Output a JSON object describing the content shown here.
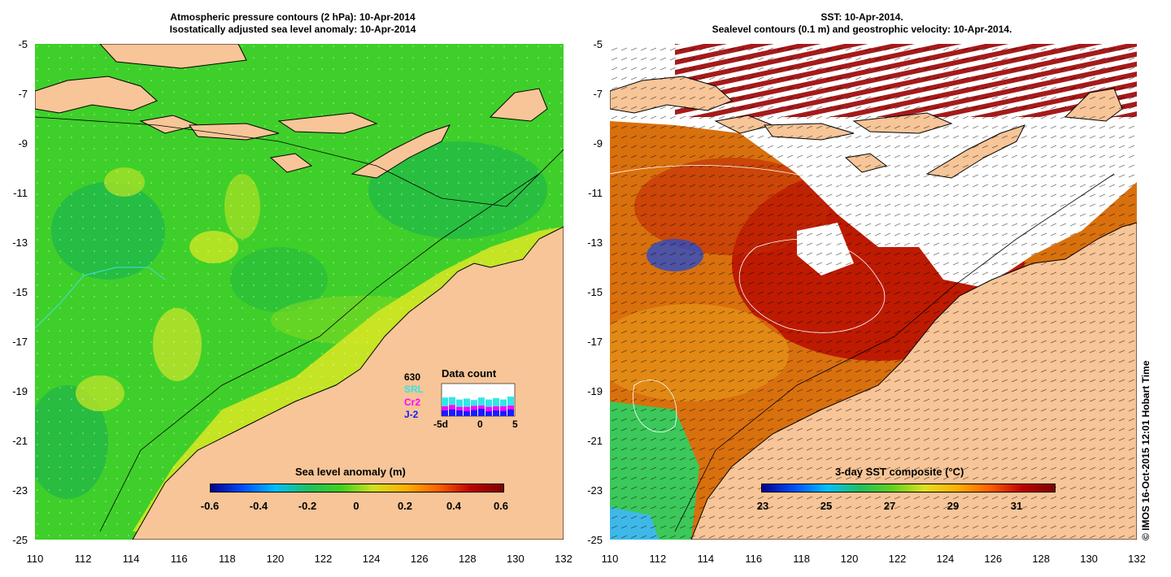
{
  "left_panel": {
    "title_line1": "Atmospheric pressure contours (2 hPa): 10-Apr-2014",
    "title_line2": "Isostatically adjusted sea level anomaly: 10-Apr-2014",
    "colorbar": {
      "title": "Sea level anomaly (m)",
      "ticks": [
        "-0.6",
        "-0.4",
        "-0.2",
        "0",
        "0.2",
        "0.4",
        "0.6"
      ]
    },
    "data_count": {
      "title": "Data count",
      "total": "630",
      "sources": [
        {
          "name": "SRL",
          "color": "#33e6e6"
        },
        {
          "name": "Cr2",
          "color": "#ff00ff"
        },
        {
          "name": "J-2",
          "color": "#1a1aff"
        }
      ],
      "axis_ticks": [
        "-5d",
        "0",
        "5"
      ]
    }
  },
  "right_panel": {
    "title_line1": "SST: 10-Apr-2014.",
    "title_line2": "Sealevel contours (0.1 m) and geostrophic velocity: 10-Apr-2014.",
    "colorbar": {
      "title": "3-day SST composite (°C)",
      "ticks": [
        "23",
        "25",
        "27",
        "29",
        "31"
      ]
    }
  },
  "axes": {
    "y_ticks": [
      "-5",
      "-7",
      "-9",
      "-11",
      "-13",
      "-15",
      "-17",
      "-19",
      "-21",
      "-23",
      "-25"
    ],
    "x_ticks": [
      "110",
      "112",
      "114",
      "116",
      "118",
      "120",
      "122",
      "124",
      "126",
      "128",
      "130",
      "132"
    ]
  },
  "credit": "© IMOS 16-Oct-2015 12:01 Hobart Time",
  "colors": {
    "land": "#f7c597",
    "ocean_green": "#44d414",
    "sst_red": "#b30000",
    "sst_orange": "#e06a10"
  }
}
